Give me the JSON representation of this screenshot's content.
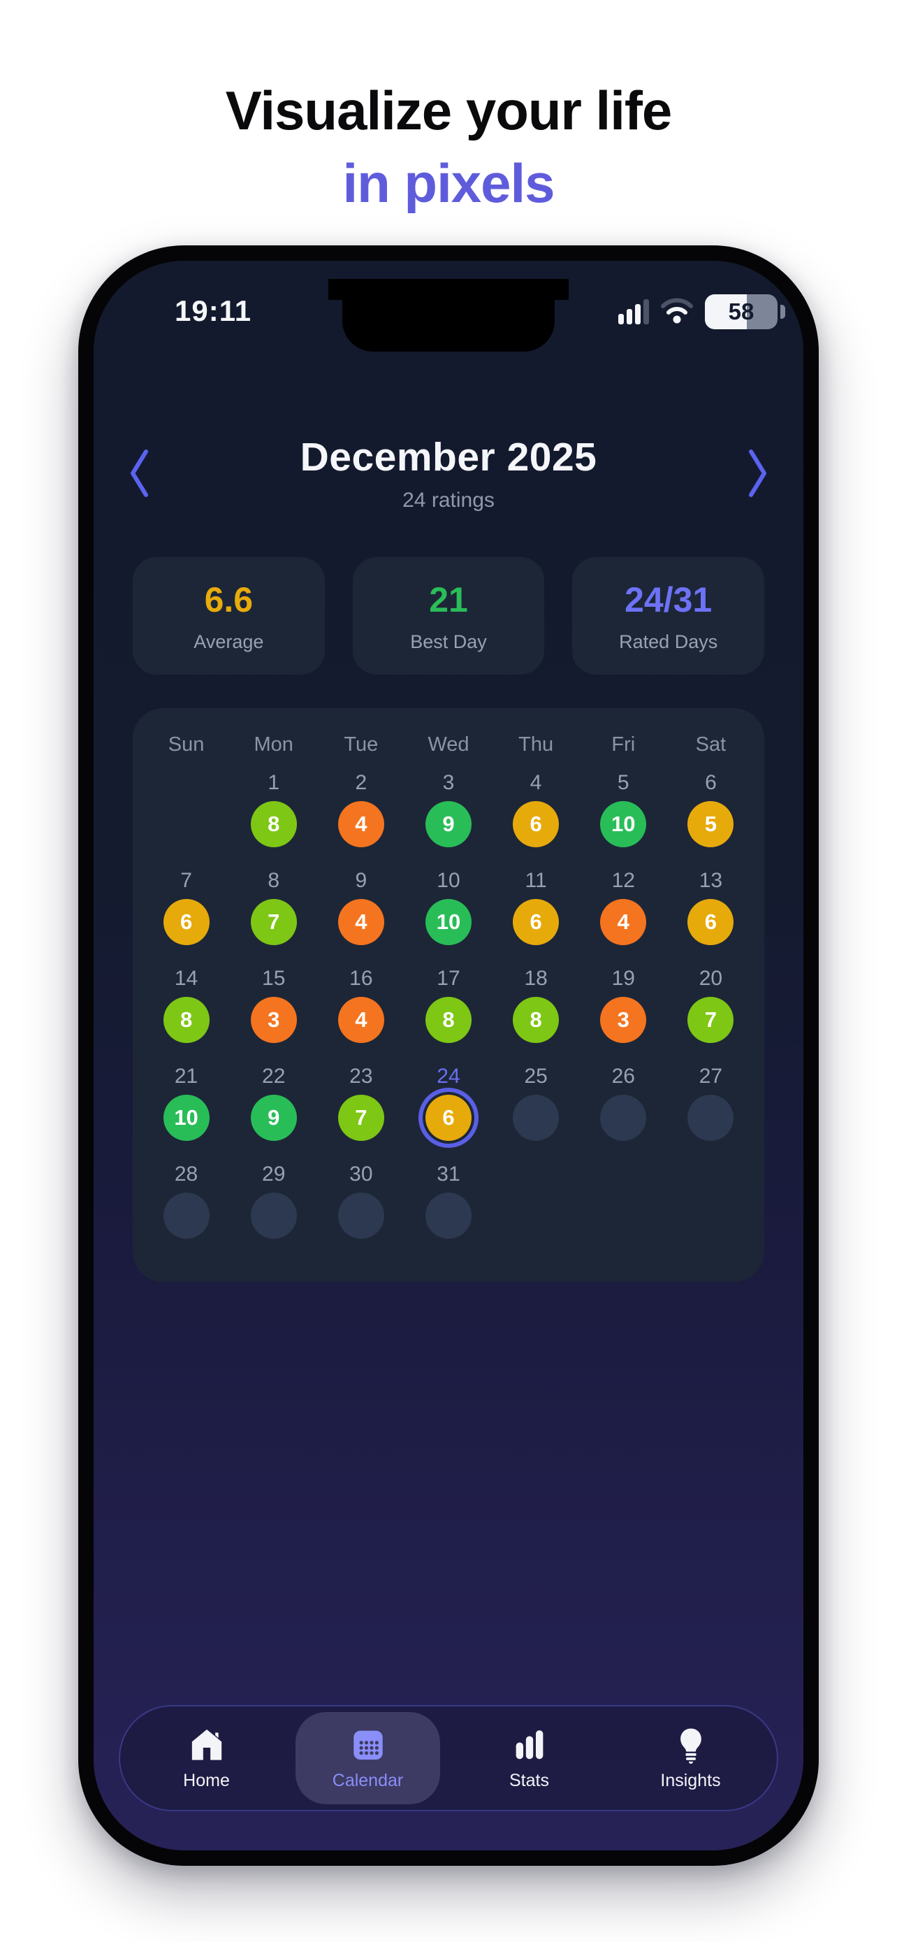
{
  "headline": {
    "line1": "Visualize your life",
    "line2": "in pixels",
    "accent_color": "#5f5cdc"
  },
  "status_bar": {
    "time": "19:11",
    "battery_percent": "58"
  },
  "month_header": {
    "title": "December 2025",
    "subtitle": "24 ratings",
    "chevron_color": "#5b63f0",
    "prev_icon": "chevron-left-icon",
    "next_icon": "chevron-right-icon"
  },
  "stats": [
    {
      "value": "6.6",
      "label": "Average",
      "color": "#e8ab0c"
    },
    {
      "value": "21",
      "label": "Best Day",
      "color": "#2abd58"
    },
    {
      "value": "24/31",
      "label": "Rated Days",
      "color": "#6d72f6"
    }
  ],
  "calendar": {
    "weekdays": [
      "Sun",
      "Mon",
      "Tue",
      "Wed",
      "Thu",
      "Fri",
      "Sat"
    ],
    "start_offset": 1,
    "today": 24,
    "days": [
      {
        "day": 1,
        "rating": 8
      },
      {
        "day": 2,
        "rating": 4
      },
      {
        "day": 3,
        "rating": 9
      },
      {
        "day": 4,
        "rating": 6
      },
      {
        "day": 5,
        "rating": 10
      },
      {
        "day": 6,
        "rating": 5
      },
      {
        "day": 7,
        "rating": 6
      },
      {
        "day": 8,
        "rating": 7
      },
      {
        "day": 9,
        "rating": 4
      },
      {
        "day": 10,
        "rating": 10
      },
      {
        "day": 11,
        "rating": 6
      },
      {
        "day": 12,
        "rating": 4
      },
      {
        "day": 13,
        "rating": 6
      },
      {
        "day": 14,
        "rating": 8
      },
      {
        "day": 15,
        "rating": 3
      },
      {
        "day": 16,
        "rating": 4
      },
      {
        "day": 17,
        "rating": 8
      },
      {
        "day": 18,
        "rating": 8
      },
      {
        "day": 19,
        "rating": 3
      },
      {
        "day": 20,
        "rating": 7
      },
      {
        "day": 21,
        "rating": 10
      },
      {
        "day": 22,
        "rating": 9
      },
      {
        "day": 23,
        "rating": 7
      },
      {
        "day": 24,
        "rating": 6
      },
      {
        "day": 25,
        "rating": null
      },
      {
        "day": 26,
        "rating": null
      },
      {
        "day": 27,
        "rating": null
      },
      {
        "day": 28,
        "rating": null
      },
      {
        "day": 29,
        "rating": null
      },
      {
        "day": 30,
        "rating": null
      },
      {
        "day": 31,
        "rating": null
      }
    ],
    "rating_colors": {
      "3": "#f5741f",
      "4": "#f5741f",
      "5": "#e7aa0b",
      "6": "#e7aa0b",
      "7": "#7ec715",
      "8": "#7ec715",
      "9": "#29bd58",
      "10": "#29bd58"
    },
    "empty_color": "#2d3950",
    "card_bg": "#1d2637",
    "today_ring_color": "#5a5fe6",
    "today_num_color": "#6b6ff0"
  },
  "tab_bar": {
    "items": [
      {
        "label": "Home",
        "icon": "home-icon",
        "active": false
      },
      {
        "label": "Calendar",
        "icon": "calendar-icon",
        "active": true
      },
      {
        "label": "Stats",
        "icon": "stats-icon",
        "active": false
      },
      {
        "label": "Insights",
        "icon": "insights-icon",
        "active": false
      }
    ],
    "active_color": "#8a8ef8",
    "inactive_color": "#f3f4f8"
  }
}
